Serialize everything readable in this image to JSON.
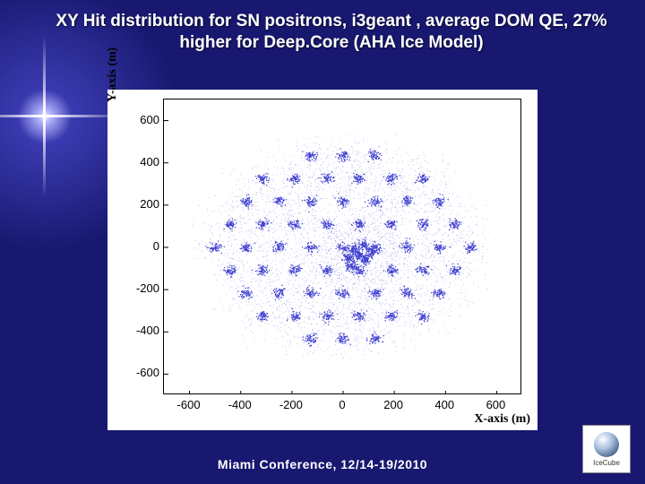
{
  "title": "XY Hit distribution for SN positrons, i3geant , average DOM QE, 27% higher for Deep.Core (AHA Ice Model)",
  "footer": "Miami Conference, 12/14-19/2010",
  "logo_text": "IceCube",
  "chart": {
    "type": "scatter",
    "xlabel": "X-axis (m)",
    "ylabel": "Y-axis (m)",
    "xlim": [
      -700,
      700
    ],
    "ylim": [
      -700,
      700
    ],
    "xticks": [
      -600,
      -400,
      -200,
      0,
      200,
      400,
      600
    ],
    "yticks": [
      -600,
      -400,
      -200,
      0,
      200,
      400,
      600
    ],
    "background_color": "#ffffff",
    "axis_color": "#000000",
    "tick_fontsize": 13,
    "label_fontsize": 14,
    "hex_radius": 560,
    "string_spacing": 125,
    "cluster_color": "#4040d0",
    "cluster_dot_radius": 0.7,
    "cluster_sigma": 22,
    "cluster_n_points": 60,
    "diffuse_color": "#6060e0",
    "diffuse_dot_radius": 0.45,
    "diffuse_n_points": 3600,
    "deepcore_center": [
      60,
      -40
    ],
    "deepcore_extra_density": 400,
    "deepcore_extra_radius": 180
  }
}
